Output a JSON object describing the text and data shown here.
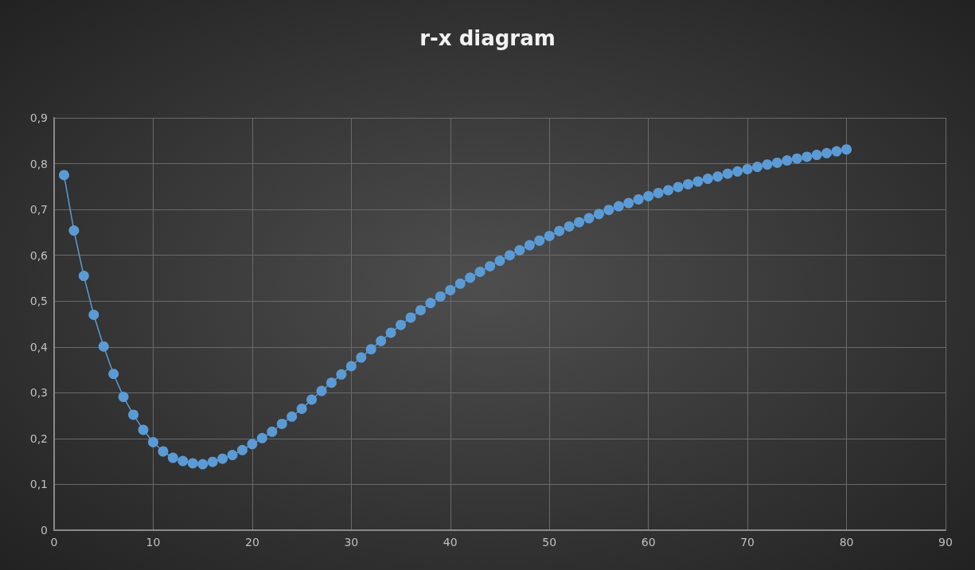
{
  "chart_data": {
    "type": "line",
    "title": "r-x diagram",
    "x": [
      1,
      2,
      3,
      4,
      5,
      6,
      7,
      8,
      9,
      10,
      11,
      12,
      13,
      14,
      15,
      16,
      17,
      18,
      19,
      20,
      21,
      22,
      23,
      24,
      25,
      26,
      27,
      28,
      29,
      30,
      31,
      32,
      33,
      34,
      35,
      36,
      37,
      38,
      39,
      40,
      41,
      42,
      43,
      44,
      45,
      46,
      47,
      48,
      49,
      50,
      51,
      52,
      53,
      54,
      55,
      56,
      57,
      58,
      59,
      60,
      61,
      62,
      63,
      64,
      65,
      66,
      67,
      68,
      69,
      70,
      71,
      72,
      73,
      74,
      75,
      76,
      77,
      78,
      79,
      80
    ],
    "series": [
      {
        "color": "#5b9bd5",
        "values": [
          0.775,
          0.654,
          0.555,
          0.47,
          0.401,
          0.341,
          0.291,
          0.252,
          0.219,
          0.192,
          0.172,
          0.158,
          0.151,
          0.146,
          0.144,
          0.149,
          0.156,
          0.164,
          0.175,
          0.188,
          0.201,
          0.215,
          0.232,
          0.248,
          0.265,
          0.285,
          0.304,
          0.322,
          0.34,
          0.358,
          0.377,
          0.395,
          0.413,
          0.431,
          0.448,
          0.464,
          0.48,
          0.496,
          0.51,
          0.524,
          0.538,
          0.551,
          0.564,
          0.576,
          0.588,
          0.6,
          0.611,
          0.622,
          0.632,
          0.642,
          0.653,
          0.663,
          0.672,
          0.681,
          0.69,
          0.699,
          0.707,
          0.714,
          0.722,
          0.729,
          0.736,
          0.742,
          0.749,
          0.755,
          0.761,
          0.767,
          0.772,
          0.778,
          0.783,
          0.788,
          0.793,
          0.798,
          0.802,
          0.807,
          0.811,
          0.815,
          0.819,
          0.823,
          0.827,
          0.831
        ]
      }
    ],
    "xlim": [
      0,
      90
    ],
    "xticks": [
      0,
      10,
      20,
      30,
      40,
      50,
      60,
      70,
      80,
      90
    ],
    "ylim": [
      0,
      0.9
    ],
    "yticks": [
      0,
      {
        "value": 0.1,
        "label": "0,1"
      },
      {
        "value": 0.2,
        "label": "0,2"
      },
      {
        "value": 0.3,
        "label": "0,3"
      },
      {
        "value": 0.4,
        "label": "0,4"
      },
      {
        "value": 0.5,
        "label": "0,5"
      },
      {
        "value": 0.6,
        "label": "0,6"
      },
      {
        "value": 0.7,
        "label": "0,7"
      },
      {
        "value": 0.8,
        "label": "0,8"
      },
      {
        "value": 0.9,
        "label": "0,9"
      }
    ],
    "grid": true,
    "marker": "circle",
    "line_style": "solid"
  }
}
